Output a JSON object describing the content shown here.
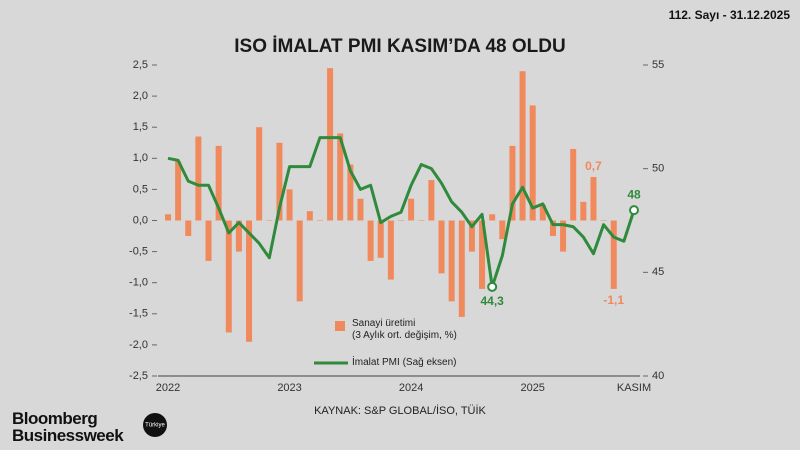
{
  "header": {
    "issue": "112. Sayı - 31.12.2025"
  },
  "brand": {
    "name": "Bloomberg\nBusinessweek",
    "edition": "Türkiye"
  },
  "chart_data": {
    "type": "combo",
    "title": "ISO İMALAT PMI KASIM’DA 48 OLDU",
    "source": "KAYNAK: S&P GLOBAL/İSO, TÜİK",
    "categories": [
      "2022",
      null,
      null,
      null,
      null,
      null,
      null,
      null,
      null,
      null,
      null,
      null,
      "2023",
      null,
      null,
      null,
      null,
      null,
      null,
      null,
      null,
      null,
      null,
      null,
      "2024",
      null,
      null,
      null,
      null,
      null,
      null,
      null,
      null,
      null,
      null,
      null,
      "2025",
      null,
      null,
      null,
      null,
      null,
      null,
      null,
      null,
      null,
      "KASIM"
    ],
    "ylim": [
      -2.5,
      2.5
    ],
    "yticks": [
      {
        "value": -2.5,
        "label": "-2,5"
      },
      {
        "value": -2,
        "label": "-2,0"
      },
      {
        "value": -1.5,
        "label": "-1,5"
      },
      {
        "value": -1,
        "label": "-1,0"
      },
      {
        "value": -0.5,
        "label": "-0,5"
      },
      {
        "value": 0,
        "label": "0,0"
      },
      {
        "value": 0.5,
        "label": "0,5"
      },
      {
        "value": 1,
        "label": "1,0"
      },
      {
        "value": 1.5,
        "label": "1,5"
      },
      {
        "value": 2,
        "label": "2,0"
      },
      {
        "value": 2.5,
        "label": "2,5"
      }
    ],
    "y2lim": [
      40,
      55
    ],
    "y2ticks": [
      40,
      45,
      50,
      55
    ],
    "series": [
      {
        "name": "Sanayi üretimi\n(3 Aylık ort. değişim, %)",
        "type": "bar",
        "color": "#f08a5d",
        "values": [
          0.1,
          0.95,
          -0.25,
          1.35,
          -0.65,
          1.2,
          -1.8,
          -0.5,
          -1.95,
          1.5,
          0.0,
          1.25,
          0.5,
          -1.3,
          0.15,
          0.0,
          2.45,
          1.4,
          0.9,
          0.35,
          -0.65,
          -0.6,
          -0.95,
          0.0,
          0.35,
          0.0,
          0.65,
          -0.85,
          -1.3,
          -1.55,
          -0.5,
          -1.1,
          0.1,
          -0.3,
          1.2,
          2.4,
          1.85,
          0.25,
          -0.25,
          -0.5,
          1.15,
          0.3,
          0.7,
          0.0,
          -1.1,
          null,
          null
        ],
        "value_labels": [
          null,
          null,
          null,
          null,
          null,
          null,
          null,
          null,
          null,
          null,
          null,
          null,
          null,
          null,
          null,
          null,
          null,
          null,
          null,
          null,
          null,
          null,
          null,
          null,
          null,
          null,
          null,
          null,
          null,
          null,
          null,
          null,
          null,
          null,
          null,
          null,
          null,
          null,
          null,
          null,
          null,
          null,
          "0,7",
          null,
          "-1,1",
          null,
          null
        ]
      },
      {
        "name": "İmalat PMI (Sağ eksen)",
        "type": "line",
        "axis": "y2",
        "color": "#2f8a3c",
        "values": [
          50.5,
          50.4,
          49.4,
          49.2,
          49.2,
          48.1,
          46.9,
          47.4,
          46.9,
          46.4,
          45.7,
          48.1,
          50.1,
          50.1,
          50.1,
          51.5,
          51.5,
          51.5,
          49.9,
          49.0,
          49.2,
          47.4,
          47.7,
          47.9,
          49.2,
          50.2,
          50.0,
          49.3,
          48.4,
          47.9,
          47.2,
          47.8,
          44.3,
          45.8,
          48.3,
          49.1,
          48.1,
          48.3,
          47.3,
          47.3,
          47.2,
          46.7,
          45.9,
          47.3,
          46.7,
          46.5,
          48.0
        ],
        "value_labels": [
          null,
          null,
          null,
          null,
          null,
          null,
          null,
          null,
          null,
          null,
          null,
          null,
          null,
          null,
          null,
          null,
          null,
          null,
          null,
          null,
          null,
          null,
          null,
          null,
          null,
          null,
          null,
          null,
          null,
          null,
          null,
          null,
          "44,3",
          null,
          null,
          null,
          null,
          null,
          null,
          null,
          null,
          null,
          null,
          null,
          null,
          null,
          "48"
        ]
      }
    ]
  }
}
